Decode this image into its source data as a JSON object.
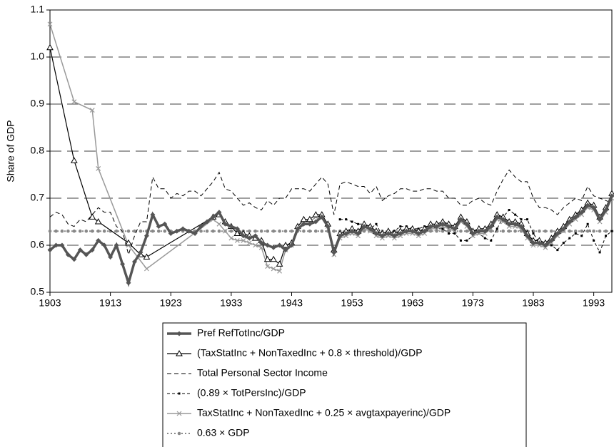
{
  "chart_data": {
    "type": "line",
    "y_label": "Share of GDP",
    "xlim": [
      1903,
      1996
    ],
    "xticks": [
      1903,
      1913,
      1923,
      1933,
      1943,
      1953,
      1963,
      1973,
      1983,
      1993
    ],
    "ylim": [
      0.5,
      1.1
    ],
    "yticks": [
      0.5,
      0.6,
      0.7,
      0.8,
      0.9,
      {
        "value": 1,
        "label": "1.0"
      },
      1.1
    ],
    "grid": true,
    "legend": "bottom",
    "series": [
      {
        "name": "Pref RefTotInc/GDP",
        "color": "#555555",
        "width": 3.5,
        "dash": "none",
        "marker": "diamond",
        "x": [
          1903,
          1904,
          1905,
          1906,
          1907,
          1908,
          1909,
          1910,
          1911,
          1912,
          1913,
          1914,
          1915,
          1916,
          1917,
          1918,
          1919,
          1920,
          1921,
          1922,
          1923,
          1924,
          1925,
          1926,
          1927,
          1928,
          1929,
          1930,
          1931,
          1932,
          1933,
          1934,
          1935,
          1936,
          1937,
          1938,
          1939,
          1940,
          1941,
          1942,
          1943,
          1944,
          1945,
          1946,
          1947,
          1948,
          1949,
          1950,
          1951,
          1952,
          1953,
          1954,
          1955,
          1956,
          1957,
          1958,
          1959,
          1960,
          1961,
          1962,
          1963,
          1964,
          1965,
          1966,
          1967,
          1968,
          1969,
          1970,
          1971,
          1972,
          1973,
          1974,
          1975,
          1976,
          1977,
          1978,
          1979,
          1980,
          1981,
          1982,
          1983,
          1984,
          1985,
          1986,
          1987,
          1988,
          1989,
          1990,
          1991,
          1992,
          1993,
          1994,
          1995,
          1996
        ],
        "values": [
          0.59,
          0.6,
          0.6,
          0.58,
          0.57,
          0.59,
          0.58,
          0.59,
          0.61,
          0.6,
          0.575,
          0.6,
          0.56,
          0.52,
          0.565,
          0.585,
          0.62,
          0.665,
          0.64,
          0.645,
          0.625,
          0.63,
          0.635,
          0.63,
          0.625,
          0.64,
          0.65,
          0.66,
          0.67,
          0.645,
          0.64,
          0.635,
          0.62,
          0.615,
          0.62,
          0.605,
          0.6,
          0.595,
          0.6,
          0.59,
          0.6,
          0.635,
          0.645,
          0.645,
          0.65,
          0.66,
          0.64,
          0.585,
          0.62,
          0.625,
          0.63,
          0.625,
          0.64,
          0.635,
          0.625,
          0.62,
          0.625,
          0.62,
          0.625,
          0.63,
          0.63,
          0.625,
          0.63,
          0.64,
          0.64,
          0.645,
          0.64,
          0.635,
          0.655,
          0.645,
          0.625,
          0.63,
          0.63,
          0.64,
          0.66,
          0.655,
          0.645,
          0.645,
          0.64,
          0.62,
          0.605,
          0.605,
          0.6,
          0.61,
          0.625,
          0.635,
          0.65,
          0.66,
          0.67,
          0.685,
          0.68,
          0.655,
          0.675,
          0.705
        ]
      },
      {
        "name": "(TaxStatInc + NonTaxedInc + 0.8 × threshold)/GDP",
        "color": "#000000",
        "width": 1.2,
        "dash": "none",
        "marker": "triangle",
        "x": [
          1903,
          1907,
          1910,
          1911,
          1916,
          1918,
          1919,
          1930,
          1931,
          1932,
          1933,
          1934,
          1935,
          1936,
          1937,
          1938,
          1939,
          1940,
          1941,
          1942,
          1943,
          1944,
          1945,
          1946,
          1947,
          1948,
          1949,
          1950,
          1951,
          1952,
          1953,
          1954,
          1955,
          1956,
          1957,
          1958,
          1959,
          1960,
          1961,
          1962,
          1963,
          1964,
          1965,
          1966,
          1967,
          1968,
          1969,
          1970,
          1971,
          1972,
          1973,
          1974,
          1975,
          1976,
          1977,
          1978,
          1979,
          1980,
          1981,
          1982,
          1983,
          1984,
          1985,
          1986,
          1987,
          1988,
          1989,
          1990,
          1991,
          1992,
          1993,
          1994,
          1995,
          1996
        ],
        "values": [
          1.02,
          0.78,
          0.66,
          0.65,
          0.605,
          0.58,
          0.575,
          0.66,
          0.665,
          0.65,
          0.64,
          0.625,
          0.625,
          0.62,
          0.615,
          0.61,
          0.57,
          0.57,
          0.56,
          0.6,
          0.605,
          0.64,
          0.655,
          0.655,
          0.665,
          0.665,
          0.645,
          0.59,
          0.625,
          0.63,
          0.635,
          0.63,
          0.645,
          0.64,
          0.63,
          0.625,
          0.63,
          0.625,
          0.63,
          0.635,
          0.635,
          0.63,
          0.635,
          0.645,
          0.645,
          0.65,
          0.645,
          0.64,
          0.66,
          0.65,
          0.63,
          0.635,
          0.635,
          0.645,
          0.665,
          0.66,
          0.65,
          0.65,
          0.645,
          0.625,
          0.61,
          0.61,
          0.605,
          0.615,
          0.63,
          0.64,
          0.655,
          0.665,
          0.675,
          0.69,
          0.685,
          0.66,
          0.68,
          0.71
        ]
      },
      {
        "name": "Total Personal Sector Income",
        "color": "#000000",
        "width": 1,
        "dash": "6 4",
        "marker": "none",
        "x": [
          1903,
          1904,
          1905,
          1906,
          1907,
          1908,
          1909,
          1910,
          1911,
          1912,
          1913,
          1914,
          1915,
          1916,
          1917,
          1918,
          1919,
          1920,
          1921,
          1922,
          1923,
          1924,
          1925,
          1926,
          1927,
          1928,
          1929,
          1930,
          1931,
          1932,
          1933,
          1934,
          1935,
          1936,
          1937,
          1938,
          1939,
          1940,
          1941,
          1942,
          1943,
          1944,
          1945,
          1946,
          1947,
          1948,
          1949,
          1950,
          1951,
          1952,
          1953,
          1954,
          1955,
          1956,
          1957,
          1958,
          1959,
          1960,
          1961,
          1962,
          1963,
          1964,
          1965,
          1966,
          1967,
          1968,
          1969,
          1970,
          1971,
          1972,
          1973,
          1974,
          1975,
          1976,
          1977,
          1978,
          1979,
          1980,
          1981,
          1982,
          1983,
          1984,
          1985,
          1986,
          1987,
          1988,
          1989,
          1990,
          1991,
          1992,
          1993,
          1994,
          1995,
          1996
        ],
        "values": [
          0.66,
          0.67,
          0.665,
          0.645,
          0.64,
          0.655,
          0.65,
          0.665,
          0.68,
          0.67,
          0.67,
          0.64,
          0.63,
          0.58,
          0.62,
          0.65,
          0.65,
          0.745,
          0.72,
          0.72,
          0.7,
          0.71,
          0.705,
          0.715,
          0.715,
          0.705,
          0.72,
          0.735,
          0.755,
          0.72,
          0.715,
          0.7,
          0.685,
          0.69,
          0.68,
          0.675,
          0.695,
          0.685,
          0.7,
          0.7,
          0.72,
          0.72,
          0.72,
          0.715,
          0.73,
          0.745,
          0.73,
          0.665,
          0.73,
          0.735,
          0.73,
          0.725,
          0.725,
          0.71,
          0.725,
          0.695,
          0.705,
          0.71,
          0.72,
          0.72,
          0.715,
          0.715,
          0.72,
          0.72,
          0.715,
          0.715,
          0.7,
          0.7,
          0.685,
          0.685,
          0.695,
          0.7,
          0.69,
          0.685,
          0.715,
          0.74,
          0.76,
          0.745,
          0.735,
          0.735,
          0.7,
          0.68,
          0.68,
          0.675,
          0.665,
          0.68,
          0.69,
          0.7,
          0.695,
          0.725,
          0.705,
          0.7,
          0.695,
          0.69
        ]
      },
      {
        "name": "(0.89 × TotPersInc)/GDP",
        "color": "#000000",
        "width": 1,
        "dash": "4 3",
        "marker": "square",
        "x": [
          1951,
          1952,
          1953,
          1954,
          1955,
          1956,
          1957,
          1958,
          1959,
          1960,
          1961,
          1962,
          1963,
          1964,
          1965,
          1966,
          1967,
          1968,
          1969,
          1970,
          1971,
          1972,
          1973,
          1974,
          1975,
          1976,
          1977,
          1978,
          1979,
          1980,
          1981,
          1982,
          1983,
          1984,
          1985,
          1986,
          1987,
          1988,
          1989,
          1990,
          1991,
          1992,
          1993,
          1994,
          1995,
          1996
        ],
        "values": [
          0.655,
          0.655,
          0.65,
          0.645,
          0.645,
          0.635,
          0.645,
          0.62,
          0.63,
          0.63,
          0.64,
          0.64,
          0.635,
          0.635,
          0.64,
          0.64,
          0.635,
          0.635,
          0.625,
          0.625,
          0.61,
          0.61,
          0.62,
          0.625,
          0.615,
          0.61,
          0.635,
          0.66,
          0.675,
          0.665,
          0.655,
          0.655,
          0.625,
          0.605,
          0.605,
          0.6,
          0.59,
          0.605,
          0.615,
          0.625,
          0.62,
          0.645,
          0.61,
          0.585,
          0.62,
          0.63
        ]
      },
      {
        "name": "TaxStatInc + NonTaxedInc + 0.25 × avgtaxpayerinc)/GDP",
        "color": "#999999",
        "width": 1.5,
        "dash": "none",
        "marker": "cross",
        "x": [
          1903,
          1907,
          1910,
          1911,
          1916,
          1919,
          1930,
          1931,
          1932,
          1933,
          1934,
          1935,
          1936,
          1937,
          1938,
          1939,
          1940,
          1941,
          1942,
          1943,
          1944,
          1945,
          1946,
          1947,
          1948,
          1949,
          1950,
          1951,
          1952,
          1953,
          1954,
          1955,
          1956,
          1957,
          1958,
          1959,
          1960,
          1961,
          1962,
          1963,
          1964,
          1965,
          1966,
          1967,
          1968,
          1969,
          1970,
          1971,
          1972,
          1973,
          1974,
          1975,
          1976,
          1977,
          1978,
          1979,
          1980,
          1981,
          1982,
          1983,
          1984,
          1985,
          1986,
          1987,
          1988,
          1989,
          1990,
          1991,
          1992,
          1993,
          1994,
          1995,
          1996
        ],
        "values": [
          1.07,
          0.905,
          0.887,
          0.763,
          0.6,
          0.55,
          0.655,
          0.645,
          0.63,
          0.615,
          0.61,
          0.61,
          0.605,
          0.6,
          0.595,
          0.555,
          0.55,
          0.545,
          0.59,
          0.6,
          0.635,
          0.65,
          0.65,
          0.66,
          0.66,
          0.64,
          0.58,
          0.615,
          0.62,
          0.625,
          0.62,
          0.635,
          0.63,
          0.62,
          0.615,
          0.62,
          0.615,
          0.62,
          0.625,
          0.625,
          0.62,
          0.625,
          0.635,
          0.635,
          0.64,
          0.635,
          0.63,
          0.65,
          0.64,
          0.62,
          0.625,
          0.625,
          0.635,
          0.655,
          0.65,
          0.64,
          0.64,
          0.635,
          0.615,
          0.6,
          0.6,
          0.595,
          0.605,
          0.62,
          0.63,
          0.645,
          0.655,
          0.665,
          0.68,
          0.675,
          0.65,
          0.67,
          0.7
        ]
      },
      {
        "name": "0.63 × GDP",
        "color": "#888888",
        "width": 2,
        "dash": "2 3",
        "marker": "circle",
        "x": [
          1903,
          1904,
          1905,
          1906,
          1907,
          1908,
          1909,
          1910,
          1911,
          1912,
          1913,
          1914,
          1915,
          1916,
          1917,
          1918,
          1919,
          1920,
          1921,
          1922,
          1923,
          1924,
          1925,
          1926,
          1927,
          1928,
          1929,
          1930,
          1931,
          1932,
          1933,
          1934,
          1935,
          1936,
          1937,
          1938,
          1939,
          1940,
          1941,
          1942,
          1943,
          1944,
          1945,
          1946,
          1947,
          1948,
          1949,
          1950,
          1951,
          1952,
          1953,
          1954,
          1955,
          1956,
          1957,
          1958,
          1959,
          1960,
          1961,
          1962,
          1963,
          1964,
          1965,
          1966,
          1967,
          1968,
          1969,
          1970,
          1971,
          1972,
          1973,
          1974,
          1975,
          1976,
          1977,
          1978,
          1979,
          1980,
          1981,
          1982,
          1983,
          1984,
          1985,
          1986,
          1987,
          1988,
          1989,
          1990,
          1991,
          1992,
          1993,
          1994,
          1995,
          1996
        ],
        "values": [
          0.63,
          0.63,
          0.63,
          0.63,
          0.63,
          0.63,
          0.63,
          0.63,
          0.63,
          0.63,
          0.63,
          0.63,
          0.63,
          0.63,
          0.63,
          0.63,
          0.63,
          0.63,
          0.63,
          0.63,
          0.63,
          0.63,
          0.63,
          0.63,
          0.63,
          0.63,
          0.63,
          0.63,
          0.63,
          0.63,
          0.63,
          0.63,
          0.63,
          0.63,
          0.63,
          0.63,
          0.63,
          0.63,
          0.63,
          0.63,
          0.63,
          0.63,
          0.63,
          0.63,
          0.63,
          0.63,
          0.63,
          0.63,
          0.63,
          0.63,
          0.63,
          0.63,
          0.63,
          0.63,
          0.63,
          0.63,
          0.63,
          0.63,
          0.63,
          0.63,
          0.63,
          0.63,
          0.63,
          0.63,
          0.63,
          0.63,
          0.63,
          0.63,
          0.63,
          0.63,
          0.63,
          0.63,
          0.63,
          0.63,
          0.63,
          0.63,
          0.63,
          0.63,
          0.63,
          0.63,
          0.63,
          0.63,
          0.63,
          0.63,
          0.63,
          0.63,
          0.63,
          0.63,
          0.63,
          0.63,
          0.63,
          0.63,
          0.63,
          0.63
        ]
      }
    ]
  }
}
